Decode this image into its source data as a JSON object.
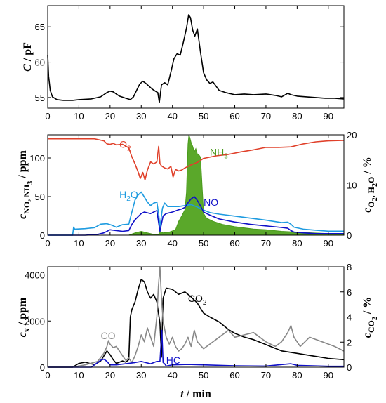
{
  "chart_data": [
    {
      "type": "line",
      "ylabel": {
        "main": "C",
        "unit": " / pF"
      },
      "xlim": [
        0,
        95
      ],
      "ylim": [
        53.5,
        68
      ],
      "x_ticks": [
        0,
        10,
        20,
        30,
        40,
        50,
        60,
        70,
        80,
        90
      ],
      "y_ticks": [
        55,
        60,
        65
      ],
      "grid": false,
      "series": [
        {
          "color": "#000000",
          "x": [
            0,
            0.3,
            0.8,
            1.5,
            3,
            5,
            8,
            10,
            14,
            17,
            19,
            20,
            21,
            22,
            23,
            25,
            26.5,
            27.5,
            28.5,
            29.5,
            30.5,
            31.5,
            32.5,
            33.5,
            34.5,
            35.3,
            35.8,
            36.5,
            37.5,
            38.5,
            39.5,
            40.5,
            41.5,
            42.5,
            43.5,
            44.5,
            45.2,
            45.8,
            46.5,
            47.2,
            48,
            49,
            50,
            51,
            52,
            53,
            54,
            55,
            57,
            60,
            63,
            66,
            70,
            73,
            75,
            77,
            78,
            80,
            83,
            86,
            89,
            92,
            95
          ],
          "y": [
            61,
            58,
            56,
            55.1,
            54.7,
            54.6,
            54.6,
            54.7,
            54.8,
            55.1,
            55.7,
            55.9,
            55.8,
            55.5,
            55.2,
            54.9,
            54.7,
            55.1,
            56.0,
            56.9,
            57.3,
            57.0,
            56.6,
            56.2,
            55.9,
            55.7,
            54.3,
            56.8,
            57.1,
            56.8,
            58.6,
            60.5,
            61.2,
            61.0,
            62.8,
            64.8,
            66.7,
            66.3,
            64.5,
            63.7,
            64.7,
            61.4,
            58.5,
            57.5,
            57.0,
            57.2,
            56.6,
            56.0,
            55.7,
            55.4,
            55.5,
            55.4,
            55.5,
            55.3,
            55.1,
            55.6,
            55.4,
            55.2,
            55.1,
            55.0,
            54.9,
            54.9,
            54.8
          ]
        }
      ]
    },
    {
      "type": "line",
      "ylabel_left": {
        "main": "c",
        "sub": "NO, NH",
        "sub3": "3",
        "unit": " / ppm"
      },
      "ylabel_right": {
        "main": "c",
        "sub": "O",
        "sub2": "2",
        "sub3": ", H",
        "sub4": "2",
        "sub5": "O",
        "unit": " / %"
      },
      "xlim": [
        0,
        95
      ],
      "ylim_left": [
        0,
        130
      ],
      "ylim_right": [
        0,
        20
      ],
      "x_ticks": [
        0,
        10,
        20,
        30,
        40,
        50,
        60,
        70,
        80,
        90
      ],
      "y_ticks_left": [
        0,
        50,
        100
      ],
      "y_ticks_right": [
        0,
        10,
        20
      ],
      "annotations": [
        {
          "text": "O",
          "sub": "2",
          "color": "#e0402a",
          "x": 23,
          "y": 113
        },
        {
          "text": "H",
          "sub": "2",
          "tail": "O",
          "color": "#1e9be0",
          "x": 23,
          "y": 48
        },
        {
          "text": "NH",
          "sub": "3",
          "color": "#4a9a1c",
          "x": 52,
          "y": 103
        },
        {
          "text": "NO",
          "color": "#1010c8",
          "x": 50,
          "y": 38
        }
      ],
      "series": [
        {
          "name": "O2",
          "axis": "right",
          "color": "#e0402a",
          "x": [
            0,
            5,
            10,
            15,
            18,
            19,
            20,
            21,
            22,
            24,
            26,
            27,
            28,
            29,
            29.7,
            30.5,
            31.2,
            32,
            33,
            34,
            35,
            35.6,
            36,
            36.5,
            37.5,
            38.5,
            39.5,
            40.2,
            41,
            42,
            43,
            44,
            46,
            48,
            50,
            54,
            58,
            62,
            66,
            70,
            74,
            78,
            82,
            86,
            90,
            95
          ],
          "y": [
            19.2,
            19.2,
            19.2,
            19.2,
            18.8,
            18.2,
            18.1,
            18.3,
            18.0,
            18.1,
            17.4,
            15.6,
            14.2,
            12.6,
            11.3,
            12.5,
            11.0,
            13.0,
            14.6,
            14.2,
            14.6,
            17.7,
            14.3,
            13.8,
            13.4,
            13.2,
            13.7,
            11.6,
            13.1,
            12.8,
            13.0,
            13.4,
            14.0,
            14.5,
            15.3,
            15.8,
            16.1,
            16.6,
            17.0,
            17.5,
            17.5,
            17.6,
            18.2,
            18.6,
            18.8,
            18.9
          ]
        },
        {
          "name": "H2O",
          "axis": "right",
          "color": "#1e9be0",
          "x": [
            0,
            8,
            8.3,
            8.7,
            12,
            15,
            17,
            19,
            20.5,
            22,
            24,
            26,
            27,
            28,
            29,
            30,
            31,
            32,
            33,
            34,
            35,
            35.6,
            36,
            36.8,
            37.5,
            38.5,
            40,
            42,
            44,
            46,
            48,
            50,
            52,
            55,
            60,
            65,
            70,
            75,
            77,
            78,
            79,
            82,
            86,
            90,
            95
          ],
          "y": [
            0,
            0,
            1.6,
            1.2,
            1.3,
            1.5,
            2.2,
            2.3,
            2.0,
            1.6,
            2.1,
            2.2,
            4.6,
            7.0,
            8.0,
            8.6,
            7.6,
            6.6,
            5.9,
            6.4,
            6.6,
            4.2,
            1.6,
            5.4,
            6.4,
            5.7,
            5.7,
            5.7,
            5.9,
            6.1,
            5.6,
            5.0,
            4.5,
            4.2,
            3.8,
            3.4,
            3.0,
            2.5,
            2.6,
            2.2,
            1.6,
            1.2,
            1.0,
            0.8,
            0.8
          ]
        },
        {
          "name": "NO",
          "axis": "left",
          "color": "#1010c8",
          "x": [
            0,
            8,
            12,
            16,
            18,
            20,
            22,
            24,
            26,
            27,
            28,
            29,
            30,
            31,
            32,
            33,
            34,
            35,
            35.5,
            36,
            37,
            38,
            40,
            42,
            43,
            44,
            45,
            46,
            47,
            48,
            49,
            50,
            52,
            55,
            60,
            65,
            70,
            75,
            77,
            78,
            79,
            82,
            86,
            90,
            95
          ],
          "y": [
            0,
            0,
            0,
            1,
            3,
            7,
            6,
            5,
            6,
            14,
            20,
            24,
            28,
            30,
            29,
            28,
            30,
            32,
            18,
            5,
            25,
            28,
            30,
            33,
            34,
            36,
            42,
            47,
            50,
            45,
            38,
            30,
            26,
            21,
            17,
            14,
            12,
            10,
            9,
            6,
            4,
            3,
            2,
            2,
            2
          ]
        },
        {
          "name": "NH3",
          "axis": "left",
          "type": "area",
          "color": "#4a9a1c",
          "fill": "#5aa82a",
          "x": [
            0,
            26,
            28,
            30,
            32,
            34,
            35.5,
            36,
            37,
            39,
            41,
            42,
            43,
            44,
            44.5,
            45,
            45.3,
            45.6,
            46,
            46.5,
            47,
            47.5,
            48,
            48.5,
            49,
            50,
            51,
            53,
            56,
            60,
            66,
            70,
            75,
            80,
            85,
            90,
            95
          ],
          "y": [
            0,
            0,
            3,
            5,
            3,
            1,
            0.5,
            5,
            3,
            4,
            7,
            18,
            25,
            33,
            55,
            118,
            130,
            126,
            120,
            115,
            108,
            112,
            105,
            104,
            101,
            28,
            22,
            18,
            14,
            11,
            8,
            7,
            5,
            4,
            3,
            2,
            1
          ]
        }
      ]
    },
    {
      "type": "line",
      "ylabel_left": {
        "main": "c",
        "sub": "x",
        "unit": " / ppm"
      },
      "ylabel_right": {
        "main": "c",
        "sub": "CO",
        "sub2": "2",
        "unit": " / %"
      },
      "xlabel": {
        "main": "t",
        "unit": " / min"
      },
      "xlim": [
        0,
        95
      ],
      "ylim_left": [
        0,
        4350
      ],
      "ylim_right": [
        0,
        8
      ],
      "x_ticks": [
        0,
        10,
        20,
        30,
        40,
        50,
        60,
        70,
        80,
        90
      ],
      "y_ticks_left": [
        0,
        2000,
        4000
      ],
      "y_ticks_right": [
        0,
        2,
        4,
        6,
        8
      ],
      "annotations": [
        {
          "text": "CO",
          "color": "#888888",
          "x": 17,
          "y": 1220
        },
        {
          "text": "CO",
          "sub": "2",
          "color": "#000000",
          "x": 45,
          "y": 2830
        },
        {
          "text": "HC",
          "color": "#1010c8",
          "x": 38,
          "y": 150
        }
      ],
      "series": [
        {
          "name": "CO2",
          "axis": "right",
          "color": "#000000",
          "x": [
            0,
            8,
            10,
            12,
            15,
            17,
            18,
            19,
            20,
            21,
            22,
            23,
            24,
            25,
            26,
            26.5,
            27,
            28,
            29,
            30,
            31,
            32,
            33,
            34,
            35,
            36,
            36.5,
            37,
            38,
            40,
            42,
            44,
            46,
            48,
            50,
            52,
            55,
            58,
            60,
            63,
            66,
            70,
            75,
            80,
            85,
            90,
            95
          ],
          "y": [
            0,
            0,
            0.3,
            0.4,
            0.2,
            0.5,
            0.9,
            1.3,
            1.0,
            0.6,
            0.3,
            0.4,
            0.5,
            0.4,
            0.6,
            4.0,
            4.6,
            5.2,
            6.2,
            7.0,
            6.8,
            6.0,
            5.5,
            5.8,
            5.2,
            3.5,
            0.8,
            5.5,
            6.3,
            6.2,
            5.8,
            6.0,
            5.6,
            5.1,
            4.3,
            4.0,
            3.6,
            3.0,
            2.7,
            2.4,
            2.2,
            1.8,
            1.3,
            1.1,
            0.9,
            0.7,
            0.6
          ]
        },
        {
          "name": "CO",
          "axis": "left",
          "color": "#888888",
          "x": [
            0,
            8,
            12,
            16,
            18,
            19,
            19.5,
            20,
            21,
            22,
            23,
            24,
            25,
            26,
            27,
            28,
            29,
            30,
            31,
            32,
            33,
            34,
            35,
            35.5,
            36,
            36.5,
            37,
            38,
            39,
            40,
            41,
            42,
            43,
            44,
            45,
            46,
            47,
            48,
            50,
            52,
            55,
            58,
            60,
            63,
            66,
            70,
            73,
            75,
            77,
            78,
            79,
            81,
            84,
            88,
            92,
            95
          ],
          "y": [
            0,
            0,
            100,
            250,
            600,
            900,
            1150,
            1000,
            850,
            900,
            700,
            500,
            300,
            400,
            200,
            500,
            900,
            1400,
            1100,
            1700,
            1300,
            900,
            2200,
            3500,
            4350,
            3000,
            2000,
            1300,
            1000,
            1300,
            900,
            700,
            800,
            1000,
            1300,
            900,
            1600,
            1100,
            800,
            1000,
            1300,
            1600,
            1300,
            1400,
            1500,
            1100,
            900,
            1100,
            1500,
            1800,
            1300,
            900,
            1300,
            1100,
            900,
            700
          ]
        },
        {
          "name": "HC",
          "axis": "left",
          "color": "#1010c8",
          "x": [
            0,
            8,
            14,
            16,
            17,
            18,
            19,
            20,
            22,
            25,
            28,
            30,
            33,
            35,
            36,
            36.6,
            37,
            37.5,
            38,
            40,
            45,
            50,
            60,
            70,
            78,
            80,
            85,
            90,
            95
          ],
          "y": [
            0,
            0,
            0,
            200,
            300,
            350,
            250,
            100,
            100,
            150,
            200,
            250,
            150,
            250,
            250,
            1600,
            200,
            150,
            50,
            100,
            120,
            100,
            60,
            50,
            150,
            80,
            60,
            40,
            40
          ]
        }
      ]
    }
  ]
}
